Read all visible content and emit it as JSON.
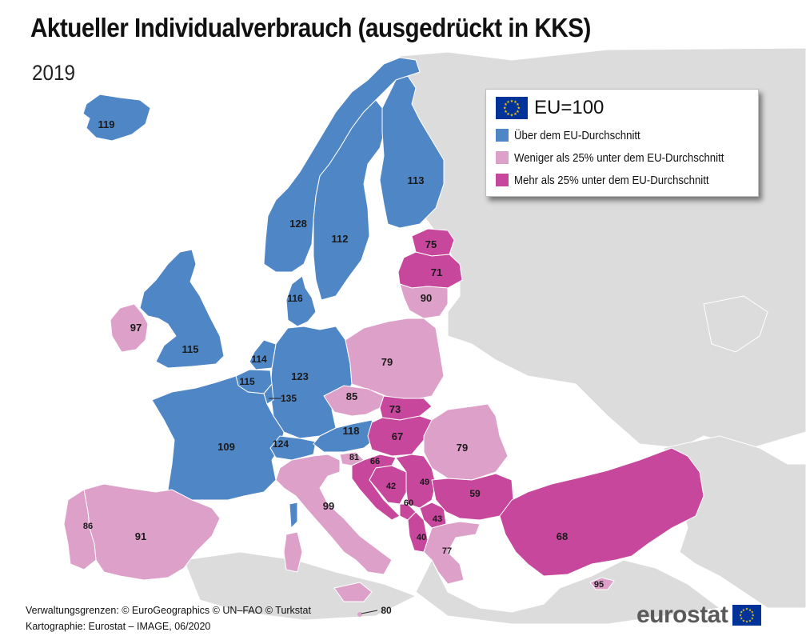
{
  "header": {
    "title": "Aktueller Individualverbrauch (ausgedrückt in KKS)",
    "subtitle": "2019"
  },
  "legend": {
    "title": "EU=100",
    "items": [
      {
        "label": "Über dem EU-Durchschnitt",
        "color": "#4f86c6"
      },
      {
        "label": "Weniger als 25% unter dem EU-Durchschnitt",
        "color": "#dda0c8"
      },
      {
        "label": "Mehr als 25% unter dem EU-Durchschnitt",
        "color": "#c6479b"
      }
    ]
  },
  "colors": {
    "background_land": "#dcdcdc",
    "sea": "#ffffff",
    "borders": "#ffffff",
    "eu_flag": "#003399",
    "eu_stars": "#ffcc00"
  },
  "map": {
    "values": {
      "iceland": "119",
      "norway": "128",
      "sweden": "112",
      "finland": "113",
      "estonia": "75",
      "latvia": "71",
      "lithuania": "90",
      "denmark": "116",
      "ireland": "97",
      "united_kingdom": "115",
      "netherlands": "114",
      "belgium": "115",
      "luxembourg": "135",
      "germany": "123",
      "poland": "79",
      "czechia": "85",
      "slovakia": "73",
      "hungary": "67",
      "austria": "118",
      "switzerland": "124",
      "france": "109",
      "slovenia": "81",
      "croatia": "66",
      "bosnia_herzegovina": "42",
      "serbia": "49",
      "montenegro": "60",
      "north_macedonia": "43",
      "albania": "40",
      "romania": "79",
      "bulgaria": "59",
      "greece": "77",
      "turkey": "68",
      "cyprus": "95",
      "italy": "99",
      "malta": "80",
      "spain": "91",
      "portugal": "86"
    }
  },
  "footer": {
    "line1": "Verwaltungsgrenzen: © EuroGeographics © UN–FAO © Turkstat",
    "line2": "Kartographie: Eurostat – IMAGE, 06/2020"
  },
  "brand": {
    "name": "eurostat"
  }
}
